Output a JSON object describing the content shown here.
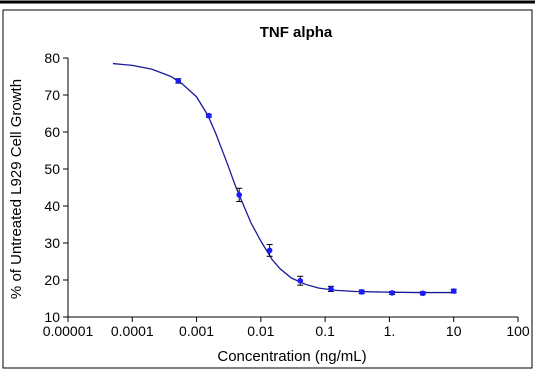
{
  "chart_data": {
    "type": "scatter",
    "title": "TNF alpha",
    "xlabel": "Concentration (ng/mL)",
    "ylabel": "% of Untreated L929 Cell Growth",
    "x_scale": "log",
    "xlim": [
      1e-05,
      100
    ],
    "ylim": [
      10,
      80
    ],
    "x_ticks": [
      1e-05,
      0.0001,
      0.001,
      0.01,
      0.1,
      1,
      10,
      100
    ],
    "x_tick_labels": [
      "0.00001",
      "0.0001",
      "0.001",
      "0.01",
      "0.1",
      "1.",
      "10",
      "100"
    ],
    "y_ticks": [
      10,
      20,
      30,
      40,
      50,
      60,
      70,
      80
    ],
    "y_tick_labels": [
      "10",
      "20",
      "30",
      "40",
      "50",
      "60",
      "70",
      "80"
    ],
    "grid": false,
    "colors": {
      "series": "#1a1aff",
      "curve": "#1a1a99",
      "axis": "#000000",
      "error": "#000000"
    },
    "series": [
      {
        "x": [
          0.00052,
          0.00155,
          0.0046,
          0.0137,
          0.041,
          0.123,
          0.37,
          1.1,
          3.3,
          10
        ],
        "y": [
          73.8,
          64.4,
          43.0,
          28.0,
          19.8,
          17.6,
          16.8,
          16.5,
          16.4,
          17.0
        ],
        "err": [
          0.6,
          0.4,
          1.8,
          1.6,
          1.2,
          0.7,
          0.5,
          0.4,
          0.4,
          0.5
        ]
      }
    ],
    "fit_curve": {
      "x_range": [
        5e-05,
        10
      ],
      "samples": [
        [
          5e-05,
          78.5
        ],
        [
          0.0001,
          78.0
        ],
        [
          0.0002,
          77.0
        ],
        [
          0.0004,
          75.0
        ],
        [
          0.0006,
          73.0
        ],
        [
          0.001,
          69.5
        ],
        [
          0.0015,
          64.5
        ],
        [
          0.002,
          59.5
        ],
        [
          0.003,
          51.5
        ],
        [
          0.004,
          45.5
        ],
        [
          0.005,
          41.5
        ],
        [
          0.007,
          35.5
        ],
        [
          0.01,
          30.5
        ],
        [
          0.015,
          25.5
        ],
        [
          0.02,
          23.0
        ],
        [
          0.03,
          20.5
        ],
        [
          0.05,
          18.8
        ],
        [
          0.08,
          17.8
        ],
        [
          0.15,
          17.2
        ],
        [
          0.3,
          16.9
        ],
        [
          1,
          16.7
        ],
        [
          3,
          16.6
        ],
        [
          10,
          16.6
        ]
      ]
    }
  }
}
